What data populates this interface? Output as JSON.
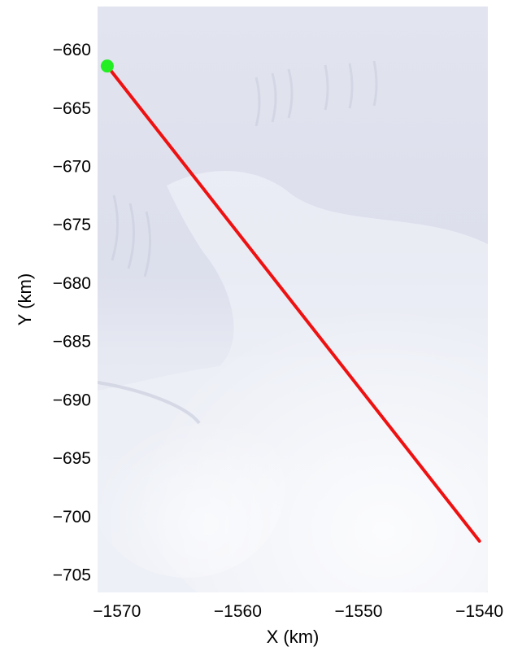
{
  "chart_data": {
    "type": "line",
    "title": "",
    "xlabel": "X (km)",
    "ylabel": "Y (km)",
    "xlim": [
      -1571.6,
      -1539.3
    ],
    "ylim": [
      -706.5,
      -656.3
    ],
    "xticks": [
      -1570,
      -1560,
      -1550,
      -1540
    ],
    "xtick_labels": [
      "−1570",
      "−1560",
      "−1550",
      "−1540"
    ],
    "yticks": [
      -660,
      -665,
      -670,
      -675,
      -680,
      -685,
      -690,
      -695,
      -700,
      -705
    ],
    "ytick_labels": [
      "−660",
      "−665",
      "−670",
      "−675",
      "−680",
      "−685",
      "−690",
      "−695",
      "−700",
      "−705"
    ],
    "grid": false,
    "background": "satellite image of ice surface",
    "series": [
      {
        "x": [
          -1570.8,
          -1540.0
        ],
        "y": [
          -661.4,
          -702.1
        ],
        "color": "#ee1111"
      }
    ],
    "markers": [
      {
        "x": -1570.8,
        "y": -661.4,
        "color": "#22ee22"
      }
    ]
  }
}
